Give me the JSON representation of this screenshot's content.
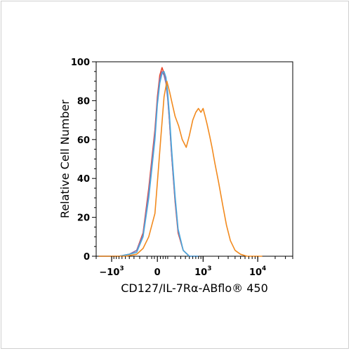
{
  "chart_data": {
    "type": "line",
    "title": "",
    "xlabel": "CD127/IL-7Rα-ABflo® 450",
    "ylabel": "Relative Cell Number",
    "ylim": [
      0,
      100
    ],
    "yticks": [
      "0",
      "20",
      "40",
      "60",
      "80",
      "100"
    ],
    "xticks": [
      {
        "base": "−10",
        "exp": "3",
        "pos": -1000
      },
      {
        "base": "0",
        "exp": "",
        "pos": 0
      },
      {
        "base": "10",
        "exp": "3",
        "pos": 1000
      },
      {
        "base": "10",
        "exp": "4",
        "pos": 10000
      }
    ],
    "xscale": "biexponential",
    "grid": false,
    "series": [
      {
        "color": "#e8452a",
        "x": [
          -1800,
          -700,
          -400,
          -250,
          -150,
          -80,
          -20,
          0,
          20,
          40,
          60,
          80,
          100,
          120,
          150,
          200,
          250,
          350,
          500,
          800
        ],
        "y": [
          0,
          0,
          1,
          3,
          12,
          35,
          65,
          82,
          93,
          97,
          94,
          90,
          82,
          70,
          52,
          28,
          12,
          3,
          0,
          0
        ]
      },
      {
        "color": "#8c74b4",
        "x": [
          -1800,
          -700,
          -400,
          -250,
          -150,
          -80,
          -20,
          0,
          20,
          40,
          60,
          80,
          100,
          120,
          150,
          200,
          250,
          350,
          500,
          800
        ],
        "y": [
          0,
          0,
          1,
          3,
          11,
          33,
          63,
          80,
          91,
          95,
          93,
          89,
          81,
          70,
          52,
          29,
          13,
          3,
          0,
          0
        ]
      },
      {
        "color": "#4aa8dc",
        "x": [
          -1800,
          -700,
          -400,
          -250,
          -150,
          -80,
          -20,
          0,
          20,
          40,
          60,
          80,
          100,
          120,
          150,
          200,
          250,
          350,
          500,
          800
        ],
        "y": [
          0,
          0,
          1,
          2,
          10,
          30,
          60,
          78,
          89,
          94,
          95,
          92,
          84,
          73,
          55,
          31,
          14,
          3,
          0,
          0
        ]
      },
      {
        "color": "#f28a1e",
        "x": [
          -1800,
          -500,
          -250,
          -150,
          -80,
          -20,
          0,
          30,
          60,
          90,
          120,
          160,
          200,
          260,
          330,
          420,
          500,
          600,
          700,
          800,
          900,
          1000,
          1100,
          1200,
          1350,
          1500,
          1700,
          2000,
          2400,
          2800,
          3300,
          4000,
          5000,
          6500,
          8000,
          12000
        ],
        "y": [
          0,
          0,
          1,
          4,
          10,
          22,
          38,
          62,
          82,
          90,
          85,
          78,
          72,
          67,
          60,
          56,
          62,
          70,
          74,
          76,
          74,
          76,
          72,
          68,
          62,
          56,
          48,
          38,
          26,
          16,
          8,
          3,
          1,
          0,
          0,
          0
        ]
      }
    ]
  }
}
